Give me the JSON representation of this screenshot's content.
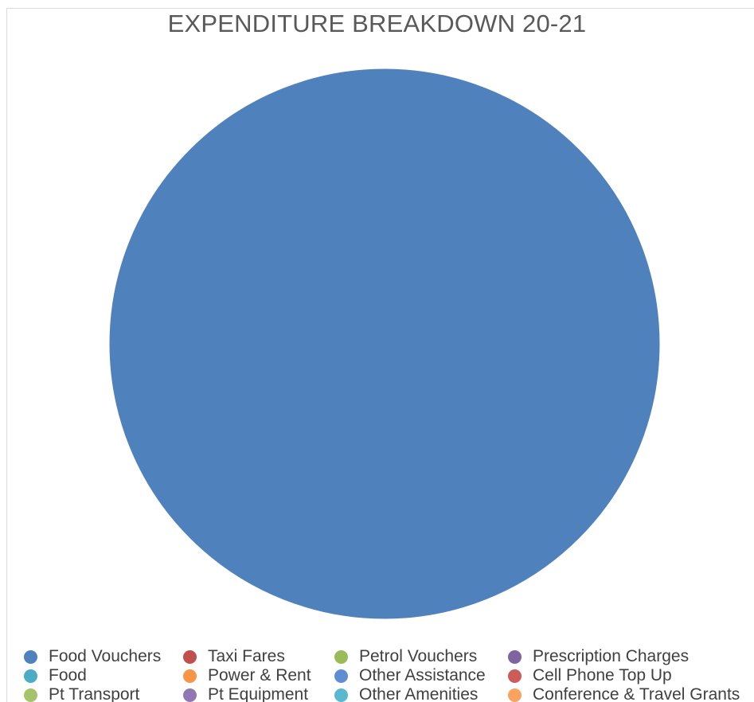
{
  "chart_data": {
    "type": "pie",
    "title": "EXPENDITURE BREAKDOWN 20-21",
    "categories": [
      "Food Vouchers",
      "Taxi Fares",
      "Petrol Vouchers",
      "Prescription Charges",
      "Food",
      "Power & Rent",
      "Other Assistance",
      "Cell Phone Top Up",
      "Pt Transport",
      "Pt Equipment",
      "Other Amenities",
      "Conference & Travel Grants"
    ],
    "values": [
      100,
      0,
      0,
      0,
      0,
      0,
      0,
      0,
      0,
      0,
      0,
      0
    ],
    "colors": [
      "#4f81bd",
      "#c0504d",
      "#9bbb59",
      "#8064a2",
      "#4bacc6",
      "#f79646",
      "#5f8dd3",
      "#cc5c5a",
      "#a5c46a",
      "#9178b3",
      "#5ab8cf",
      "#f8a35e"
    ],
    "legend": "bottom"
  }
}
